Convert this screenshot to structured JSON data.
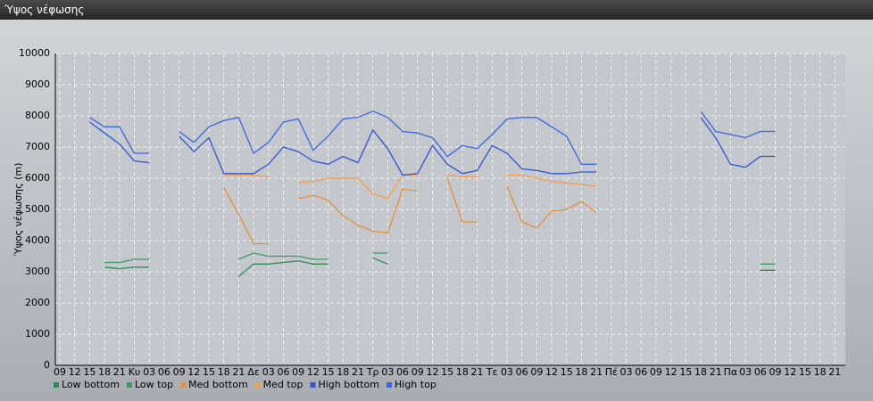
{
  "window": {
    "title": "Ύψος νέφωσης"
  },
  "chart_data": {
    "type": "line",
    "y_label": "Ύψος νέφωσης (m)",
    "categories": [
      "09",
      "12",
      "15",
      "18",
      "21",
      "Κυ",
      "03",
      "06",
      "09",
      "12",
      "15",
      "18",
      "21",
      "Δε",
      "03",
      "06",
      "09",
      "12",
      "15",
      "18",
      "21",
      "Τρ",
      "03",
      "06",
      "09",
      "12",
      "15",
      "18",
      "21",
      "Τε",
      "03",
      "06",
      "09",
      "12",
      "15",
      "18",
      "21",
      "Πέ",
      "03",
      "06",
      "09",
      "12",
      "15",
      "18",
      "21",
      "Πα",
      "03",
      "06",
      "09",
      "12",
      "15",
      "18",
      "21"
    ],
    "ylim": [
      0,
      10000
    ],
    "yticks": [
      0,
      1000,
      2000,
      3000,
      4000,
      5000,
      6000,
      7000,
      8000,
      9000,
      10000
    ],
    "grid": true,
    "series": [
      {
        "name": "Low bottom",
        "color": "#2e8b57",
        "values": [
          null,
          null,
          null,
          3150,
          3100,
          3150,
          3150,
          null,
          null,
          null,
          null,
          null,
          2850,
          3250,
          3250,
          3300,
          3350,
          3250,
          3250,
          null,
          null,
          3450,
          3250,
          null,
          null,
          null,
          null,
          null,
          null,
          null,
          null,
          null,
          null,
          null,
          null,
          null,
          null,
          null,
          null,
          null,
          null,
          null,
          null,
          null,
          null,
          null,
          null,
          3050,
          3050,
          null,
          null,
          null,
          null
        ]
      },
      {
        "name": "Low top",
        "color": "#3c9a66",
        "values": [
          null,
          null,
          null,
          3300,
          3300,
          3400,
          3400,
          null,
          null,
          null,
          null,
          null,
          3400,
          3600,
          3500,
          3500,
          3500,
          3400,
          3400,
          null,
          null,
          3600,
          3600,
          null,
          null,
          null,
          null,
          null,
          null,
          null,
          null,
          null,
          null,
          null,
          null,
          null,
          null,
          null,
          null,
          null,
          null,
          null,
          null,
          null,
          null,
          null,
          null,
          3250,
          3250,
          null,
          null,
          null,
          null
        ]
      },
      {
        "name": "Med bottom",
        "color": "#e8903a",
        "values": [
          null,
          null,
          null,
          null,
          null,
          null,
          null,
          null,
          null,
          null,
          null,
          5700,
          4850,
          3900,
          3900,
          null,
          5350,
          5450,
          5300,
          4800,
          4500,
          4300,
          4250,
          5650,
          5600,
          null,
          6000,
          4600,
          4600,
          null,
          5750,
          4600,
          4400,
          4950,
          5000,
          5250,
          4900,
          null,
          null,
          null,
          null,
          null,
          null,
          null,
          null,
          null,
          null,
          null,
          null,
          null,
          null,
          null,
          null
        ]
      },
      {
        "name": "Med top",
        "color": "#f0a050",
        "values": [
          null,
          null,
          null,
          null,
          null,
          null,
          null,
          null,
          null,
          null,
          null,
          6100,
          6100,
          6100,
          6050,
          null,
          5850,
          5900,
          6000,
          6000,
          6000,
          5500,
          5350,
          6100,
          6100,
          null,
          6100,
          6050,
          6050,
          null,
          6100,
          6100,
          6000,
          5900,
          5850,
          5800,
          5750,
          null,
          null,
          null,
          null,
          null,
          null,
          null,
          null,
          null,
          null,
          null,
          null,
          null,
          null,
          null,
          null
        ]
      },
      {
        "name": "High bottom",
        "color": "#2f55d4",
        "values": [
          null,
          null,
          7800,
          7450,
          7100,
          6550,
          6500,
          null,
          7350,
          6850,
          7300,
          6150,
          6150,
          6150,
          6450,
          7000,
          6850,
          6550,
          6450,
          6700,
          6500,
          7550,
          6950,
          6100,
          6150,
          7050,
          6450,
          6150,
          6250,
          7050,
          6800,
          6300,
          6250,
          6150,
          6150,
          6200,
          6200,
          null,
          null,
          null,
          null,
          null,
          null,
          7950,
          7300,
          6450,
          6350,
          6700,
          6700,
          null,
          null,
          null,
          null
        ]
      },
      {
        "name": "High top",
        "color": "#3a66e0",
        "values": [
          null,
          null,
          7950,
          7650,
          7650,
          6800,
          6800,
          null,
          7500,
          7150,
          7650,
          7850,
          7950,
          6800,
          7150,
          7800,
          7900,
          6900,
          7350,
          7900,
          7950,
          8150,
          7950,
          7500,
          7450,
          7300,
          6700,
          7050,
          6950,
          7400,
          7900,
          7950,
          7950,
          7650,
          7350,
          6450,
          6450,
          null,
          null,
          null,
          null,
          null,
          null,
          8150,
          7500,
          7400,
          7300,
          7500,
          7500,
          null,
          null,
          null,
          null
        ]
      }
    ]
  }
}
